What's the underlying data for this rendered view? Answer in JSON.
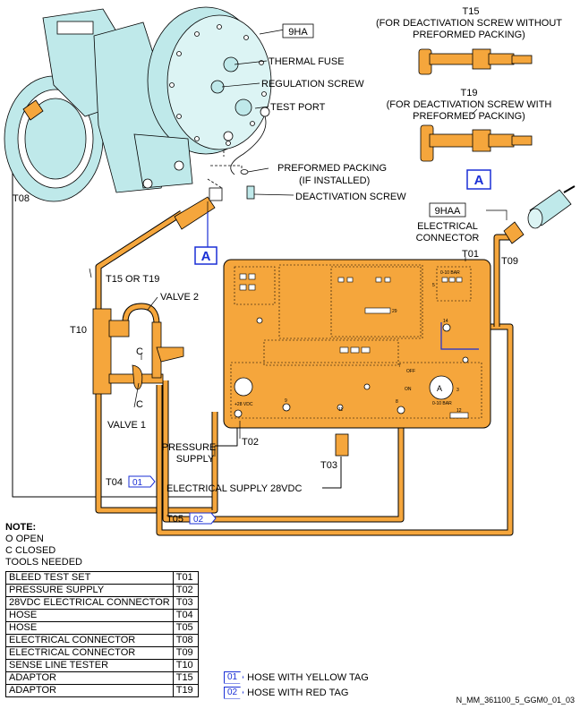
{
  "labels": {
    "comp_ref": "9HA",
    "thermal_fuse": "THERMAL FUSE",
    "regulation_screw": "REGULATION SCREW",
    "test_port": "TEST PORT",
    "preformed_packing_1": "PREFORMED PACKING",
    "preformed_packing_2": "(IF INSTALLED)",
    "deactivation_screw": "DEACTIVATION SCREW",
    "t15": "T15",
    "t15_desc_1": "(FOR DEACTIVATION SCREW WITHOUT",
    "t15_desc_2": "PREFORMED PACKING)",
    "t19": "T19",
    "t19_desc_1": "(FOR DEACTIVATION SCREW WITH",
    "t19_desc_2": "PREFORMED PACKING)",
    "detail_a": "A",
    "conn_ref": "9HAA",
    "elec_conn_1": "ELECTRICAL",
    "elec_conn_2": "CONNECTOR",
    "t01": "T01",
    "t09": "T09",
    "t08": "T08",
    "t15_or_t19": "T15 OR T19",
    "valve2": "VALVE 2",
    "t10": "T10",
    "c": "C",
    "valve1": "VALVE 1",
    "pressure_supply_1": "PRESSURE",
    "pressure_supply_2": "SUPPLY",
    "t02": "T02",
    "t03": "T03",
    "t04": "T04",
    "t05": "T05",
    "elec_supply": "ELECTRICAL SUPPLY 28VDC",
    "tag1": "01",
    "tag2": "02"
  },
  "panel_text": {
    "range1": "0-10 BAR",
    "range2": "0-10 BAR",
    "gauge": "A",
    "off": "OFF",
    "on": "ON",
    "n7": "7",
    "n8": "8",
    "n9": "9",
    "n11": "11",
    "n12": "12",
    "n14": "14",
    "n29": "29",
    "n3": "3",
    "n5": "5",
    "v28": "+28 VDC"
  },
  "notes": {
    "title": "NOTE:",
    "open": "O   OPEN",
    "closed": "C   CLOSED",
    "tools_needed": "TOOLS NEEDED"
  },
  "tools": [
    {
      "name": "BLEED TEST SET",
      "code": "T01"
    },
    {
      "name": "PRESSURE SUPPLY",
      "code": "T02"
    },
    {
      "name": "28VDC ELECTRICAL CONNECTOR",
      "code": "T03"
    },
    {
      "name": "HOSE",
      "code": "T04"
    },
    {
      "name": "HOSE",
      "code": "T05"
    },
    {
      "name": "ELECTRICAL CONNECTOR",
      "code": "T08"
    },
    {
      "name": "ELECTRICAL CONNECTOR",
      "code": "T09"
    },
    {
      "name": "SENSE LINE TESTER",
      "code": "T10"
    },
    {
      "name": "ADAPTOR",
      "code": "T15"
    },
    {
      "name": "ADAPTOR",
      "code": "T19"
    }
  ],
  "legend": [
    {
      "tag": "01",
      "text": "HOSE WITH YELLOW TAG"
    },
    {
      "tag": "02",
      "text": "HOSE WITH RED TAG"
    }
  ],
  "reference": "N_MM_361100_5_GGM0_01_03",
  "colors": {
    "orange": "#f5a63c",
    "cyan": "#bfe9ea",
    "blue": "#1a2fd6"
  }
}
